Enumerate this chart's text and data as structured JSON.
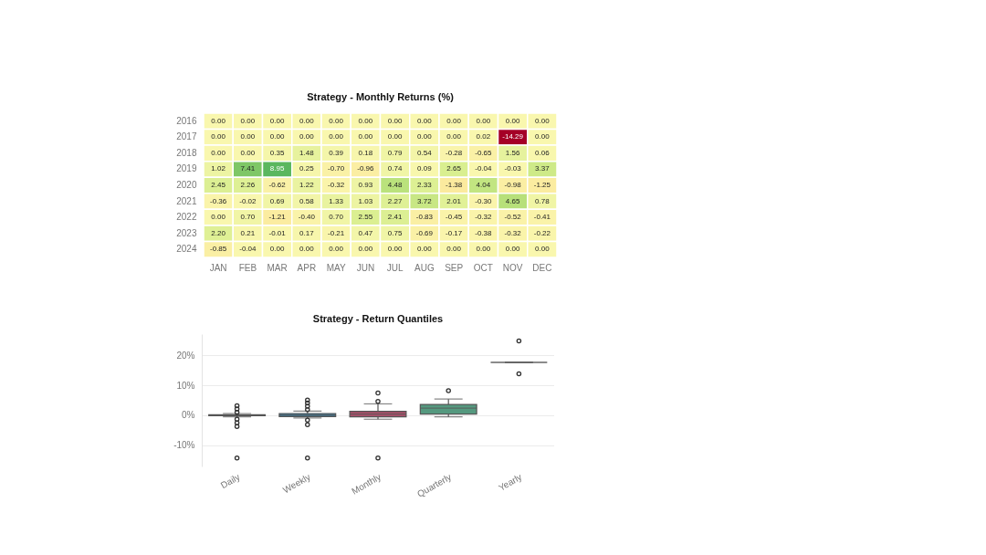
{
  "chart_data": [
    {
      "type": "heatmap",
      "title": "Strategy - Monthly Returns (%)",
      "categories": [
        "JAN",
        "FEB",
        "MAR",
        "APR",
        "MAY",
        "JUN",
        "JUL",
        "AUG",
        "SEP",
        "OCT",
        "NOV",
        "DEC"
      ],
      "y_categories": [
        "2016",
        "2017",
        "2018",
        "2019",
        "2020",
        "2021",
        "2022",
        "2023",
        "2024"
      ],
      "cells": [
        [
          0,
          0,
          0,
          0,
          0,
          0,
          0,
          0,
          0,
          0,
          0,
          0
        ],
        [
          0,
          0,
          0,
          0,
          0,
          0,
          0,
          0,
          0,
          0.02,
          -14.29,
          0
        ],
        [
          0,
          0,
          0.35,
          1.48,
          0.39,
          0.18,
          0.79,
          0.54,
          -0.28,
          -0.65,
          1.56,
          0.06
        ],
        [
          1.02,
          7.41,
          8.95,
          0.25,
          -0.7,
          -0.96,
          0.74,
          0.09,
          2.65,
          -0.04,
          -0.03,
          3.37
        ],
        [
          2.45,
          2.26,
          -0.62,
          1.22,
          -0.32,
          0.93,
          4.48,
          2.33,
          -1.38,
          4.04,
          -0.98,
          -1.25
        ],
        [
          -0.36,
          -0.02,
          0.69,
          0.58,
          1.33,
          1.03,
          2.27,
          3.72,
          2.01,
          -0.3,
          4.65,
          0.78
        ],
        [
          0,
          0.7,
          -1.21,
          -0.4,
          0.7,
          2.55,
          2.41,
          -0.83,
          -0.45,
          -0.32,
          -0.52,
          -0.41
        ],
        [
          2.2,
          0.21,
          -0.01,
          0.17,
          -0.21,
          0.47,
          0.75,
          -0.69,
          -0.17,
          -0.38,
          -0.32,
          -0.22
        ],
        [
          -0.85,
          -0.04,
          0,
          0,
          0,
          0,
          0,
          0,
          0,
          0,
          0,
          0
        ]
      ],
      "cell_labels": [
        [
          "0.00",
          "0.00",
          "0.00",
          "0.00",
          "0.00",
          "0.00",
          "0.00",
          "0.00",
          "0.00",
          "0.00",
          "0.00",
          "0.00"
        ],
        [
          "0.00",
          "0.00",
          "0.00",
          "0.00",
          "0.00",
          "0.00",
          "0.00",
          "0.00",
          "0.00",
          "0.02",
          "-14.29",
          "0.00"
        ],
        [
          "0.00",
          "0.00",
          "0.35",
          "1.48",
          "0.39",
          "0.18",
          "0.79",
          "0.54",
          "-0.28",
          "-0.65",
          "1.56",
          "0.06"
        ],
        [
          "1.02",
          "7.41",
          "8.95",
          "0.25",
          "-0.70",
          "-0.96",
          "0.74",
          "0.09",
          "2.65",
          "-0.04",
          "-0.03",
          "3.37"
        ],
        [
          "2.45",
          "2.26",
          "-0.62",
          "1.22",
          "-0.32",
          "0.93",
          "4.48",
          "2.33",
          "-1.38",
          "4.04",
          "-0.98",
          "-1.25"
        ],
        [
          "-0.36",
          "-0.02",
          "0.69",
          "0.58",
          "1.33",
          "1.03",
          "2.27",
          "3.72",
          "2.01",
          "-0.30",
          "4.65",
          "0.78"
        ],
        [
          "0.00",
          "0.70",
          "-1.21",
          "-0.40",
          "0.70",
          "2.55",
          "2.41",
          "-0.83",
          "-0.45",
          "-0.32",
          "-0.52",
          "-0.41"
        ],
        [
          "2.20",
          "0.21",
          "-0.01",
          "0.17",
          "-0.21",
          "0.47",
          "0.75",
          "-0.69",
          "-0.17",
          "-0.38",
          "-0.32",
          "-0.22"
        ],
        [
          "-0.85",
          "-0.04",
          "0.00",
          "0.00",
          "0.00",
          "0.00",
          "0.00",
          "0.00",
          "0.00",
          "0.00",
          "0.00",
          "0.00"
        ]
      ]
    },
    {
      "type": "box",
      "title": "Strategy - Return Quantiles",
      "categories": [
        "Daily",
        "Weekly",
        "Monthly",
        "Quarterly",
        "Yearly"
      ],
      "colors": [
        "#666666",
        "#3d7a9a",
        "#a8506a",
        "#55997f",
        "#555555"
      ],
      "boxes": [
        {
          "low": -0.5,
          "q1": -0.15,
          "median": 0,
          "q3": 0.2,
          "high": 0.6,
          "outliers": [
            1.0,
            2.1,
            3.2,
            -1.3,
            -2.5,
            -3.7,
            -14.2
          ]
        },
        {
          "low": -0.9,
          "q1": -0.4,
          "median": 0.1,
          "q3": 0.6,
          "high": 1.4,
          "outliers": [
            1.9,
            3.0,
            4.1,
            5.1,
            -1.6,
            -3.1,
            -14.2
          ]
        },
        {
          "low": -1.3,
          "q1": -0.5,
          "median": 0.4,
          "q3": 1.3,
          "high": 3.8,
          "outliers": [
            4.6,
            7.4,
            -14.2
          ]
        },
        {
          "low": -0.5,
          "q1": 0.4,
          "median": 2.4,
          "q3": 3.6,
          "high": 5.4,
          "outliers": [
            8.2
          ]
        },
        {
          "low": 17.6,
          "q1": 17.6,
          "median": 17.6,
          "q3": 17.6,
          "high": 17.6,
          "outliers": [
            24.7,
            13.8
          ]
        }
      ],
      "ylim": [
        -17,
        27
      ],
      "yticks": [
        {
          "value": -10,
          "label": "-10%"
        },
        {
          "value": 0,
          "label": "0%"
        },
        {
          "value": 10,
          "label": "10%"
        },
        {
          "value": 20,
          "label": "20%"
        }
      ],
      "grid": "y"
    }
  ]
}
